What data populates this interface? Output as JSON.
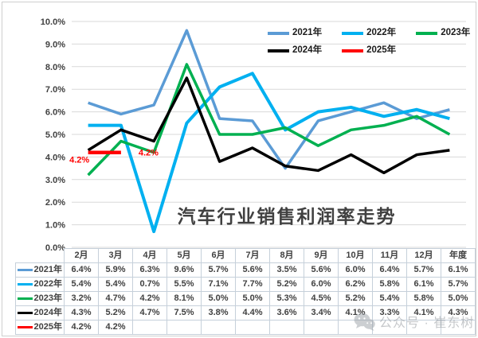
{
  "title": "汽车行业销售利润率走势",
  "watermark": {
    "text": "公众号 · 崔东树",
    "icon": "wechat-icon"
  },
  "chart_data": {
    "type": "line",
    "title": "汽车行业销售利润率走势",
    "xlabel": "",
    "ylabel": "",
    "grid": true,
    "legend_position": "top-right",
    "y_axis": {
      "min": 0,
      "max": 10,
      "step": 1
    },
    "y_tick_labels": [
      "0.0%",
      "1.0%",
      "2.0%",
      "3.0%",
      "4.0%",
      "5.0%",
      "6.0%",
      "7.0%",
      "8.0%",
      "9.0%",
      "10.0%"
    ],
    "categories": [
      "2月",
      "3月",
      "4月",
      "5月",
      "6月",
      "7月",
      "8月",
      "9月",
      "10月",
      "11月",
      "12月",
      "年度"
    ],
    "series": [
      {
        "name": "2021年",
        "color": "#5B9BD5",
        "values": [
          6.4,
          5.9,
          6.3,
          9.6,
          5.7,
          5.6,
          3.5,
          5.6,
          6.0,
          6.4,
          5.7,
          6.1
        ]
      },
      {
        "name": "2022年",
        "color": "#00B0F0",
        "values": [
          5.4,
          5.4,
          0.7,
          5.5,
          7.1,
          7.7,
          5.2,
          6.0,
          6.2,
          5.8,
          6.1,
          5.7
        ]
      },
      {
        "name": "2023年",
        "color": "#00B050",
        "values": [
          3.2,
          4.7,
          4.2,
          8.1,
          5.0,
          5.0,
          5.3,
          4.5,
          5.2,
          5.4,
          5.8,
          5.0
        ]
      },
      {
        "name": "2024年",
        "color": "#000000",
        "values": [
          4.3,
          5.2,
          4.7,
          7.5,
          3.8,
          4.4,
          3.6,
          3.4,
          4.1,
          3.3,
          4.1,
          4.3
        ]
      },
      {
        "name": "2025年",
        "color": "#FF0000",
        "values": [
          4.2,
          4.2,
          null,
          null,
          null,
          null,
          null,
          null,
          null,
          null,
          null,
          null
        ],
        "data_labels": [
          "4.2%",
          "4.2%"
        ]
      }
    ],
    "legend_rows": [
      [
        "2021年",
        "2022年",
        "2023年"
      ],
      [
        "2024年",
        "2025年"
      ]
    ]
  },
  "table": {
    "col_headers": [
      "2月",
      "3月",
      "4月",
      "5月",
      "6月",
      "7月",
      "8月",
      "9月",
      "10月",
      "11月",
      "12月",
      "年度"
    ],
    "rows": [
      {
        "label": "2021年",
        "color": "#5B9BD5",
        "cells": [
          "6.4%",
          "5.9%",
          "6.3%",
          "9.6%",
          "5.7%",
          "5.6%",
          "3.5%",
          "5.6%",
          "6.0%",
          "6.4%",
          "5.7%",
          "6.1%"
        ]
      },
      {
        "label": "2022年",
        "color": "#00B0F0",
        "cells": [
          "5.4%",
          "5.4%",
          "0.7%",
          "5.5%",
          "7.1%",
          "7.7%",
          "5.2%",
          "6.0%",
          "6.2%",
          "5.8%",
          "6.1%",
          "5.7%"
        ]
      },
      {
        "label": "2023年",
        "color": "#00B050",
        "cells": [
          "3.2%",
          "4.7%",
          "4.2%",
          "8.1%",
          "5.0%",
          "5.0%",
          "5.3%",
          "4.5%",
          "5.2%",
          "5.4%",
          "5.8%",
          "5.0%"
        ]
      },
      {
        "label": "2024年",
        "color": "#000000",
        "cells": [
          "4.3%",
          "5.2%",
          "4.7%",
          "7.5%",
          "3.8%",
          "4.4%",
          "3.6%",
          "3.4%",
          "4.1%",
          "3.3%",
          "4.1%",
          "4.3%"
        ]
      },
      {
        "label": "2025年",
        "color": "#FF0000",
        "cells": [
          "4.2%",
          "4.2%",
          "",
          "",
          "",
          "",
          "",
          "",
          "",
          "",
          "",
          ""
        ]
      }
    ]
  },
  "colors": {
    "grid": "#d9d9d9",
    "axis_text": "#404040",
    "title_text": "#404040",
    "table_border": "#c6d0da",
    "data_label": "#FF0000"
  }
}
